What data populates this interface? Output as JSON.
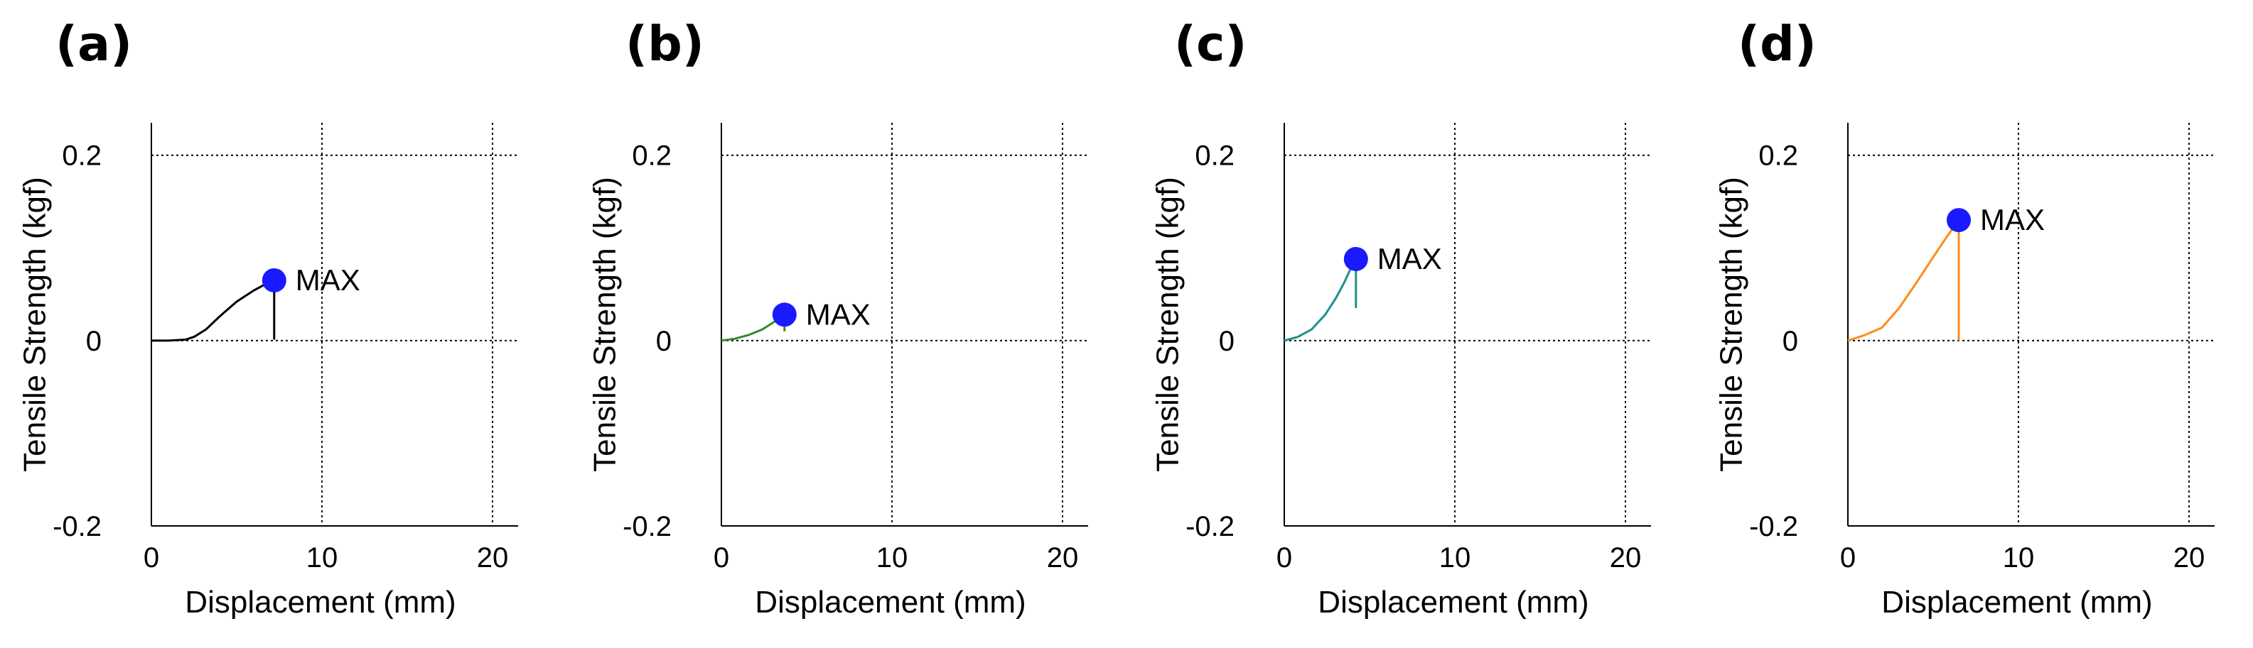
{
  "chart_data": [
    {
      "type": "line",
      "panel": "(a)",
      "xlabel": "Displacement (mm)",
      "ylabel": "Tensile Strength (kgf)",
      "xlim": [
        0,
        21.5
      ],
      "ylim": [
        -0.2,
        0.235
      ],
      "xticks": [
        0,
        10,
        20
      ],
      "xtick_labels": [
        "0",
        "10",
        "20"
      ],
      "yticks": [
        -0.2,
        0,
        0.2
      ],
      "ytick_labels": [
        "-0.2",
        "0",
        "0.2"
      ],
      "grid": "dotted lines at x=10, x=20, y=0, y=0.2",
      "color": "#000000",
      "x": [
        0,
        1,
        2,
        2.5,
        3.2,
        4,
        5,
        6,
        6.8,
        7.1,
        7.2
      ],
      "y": [
        0,
        0,
        0.001,
        0.004,
        0.012,
        0.026,
        0.042,
        0.054,
        0.062,
        0.064,
        0.065
      ],
      "drop": {
        "x": 7.2,
        "y_from": 0.065,
        "y_to": 0.001
      },
      "max_point": {
        "x": 7.2,
        "y": 0.065,
        "label": "MAX"
      }
    },
    {
      "type": "line",
      "panel": "(b)",
      "xlabel": "Displacement (mm)",
      "ylabel": "Tensile Strength (kgf)",
      "xlim": [
        0,
        21.5
      ],
      "ylim": [
        -0.2,
        0.235
      ],
      "xticks": [
        0,
        10,
        20
      ],
      "xtick_labels": [
        "0",
        "10",
        "20"
      ],
      "yticks": [
        -0.2,
        0,
        0.2
      ],
      "ytick_labels": [
        "-0.2",
        "0",
        "0.2"
      ],
      "grid": "dotted lines at x=10, x=20, y=0, y=0.2",
      "color": "#2e8b2e",
      "x": [
        0,
        0.8,
        1.6,
        2.4,
        3.0,
        3.5,
        3.7
      ],
      "y": [
        0,
        0.002,
        0.006,
        0.012,
        0.019,
        0.025,
        0.028
      ],
      "drop": {
        "x": 3.7,
        "y_from": 0.028,
        "y_to": 0.01
      },
      "max_point": {
        "x": 3.7,
        "y": 0.028,
        "label": "MAX"
      }
    },
    {
      "type": "line",
      "panel": "(c)",
      "xlabel": "Displacement (mm)",
      "ylabel": "Tensile Strength (kgf)",
      "xlim": [
        0,
        21.5
      ],
      "ylim": [
        -0.2,
        0.235
      ],
      "xticks": [
        0,
        10,
        20
      ],
      "xtick_labels": [
        "0",
        "10",
        "20"
      ],
      "yticks": [
        -0.2,
        0,
        0.2
      ],
      "ytick_labels": [
        "-0.2",
        "0",
        "0.2"
      ],
      "grid": "dotted lines at x=10, x=20, y=0, y=0.2",
      "color": "#1f8f8f",
      "x": [
        0,
        0.8,
        1.6,
        2.4,
        3.0,
        3.5,
        3.9,
        4.2
      ],
      "y": [
        0,
        0.004,
        0.012,
        0.028,
        0.045,
        0.062,
        0.078,
        0.088
      ],
      "drop": {
        "x": 4.2,
        "y_from": 0.088,
        "y_to": 0.035
      },
      "max_point": {
        "x": 4.2,
        "y": 0.088,
        "label": "MAX"
      }
    },
    {
      "type": "line",
      "panel": "(d)",
      "xlabel": "Displacement (mm)",
      "ylabel": "Tensile Strength (kgf)",
      "xlim": [
        0,
        21.5
      ],
      "ylim": [
        -0.2,
        0.235
      ],
      "xticks": [
        0,
        10,
        20
      ],
      "xtick_labels": [
        "0",
        "10",
        "20"
      ],
      "yticks": [
        -0.2,
        0,
        0.2
      ],
      "ytick_labels": [
        "-0.2",
        "0",
        "0.2"
      ],
      "grid": "dotted lines at x=10, x=20, y=0, y=0.2",
      "color": "#ff8c1a",
      "x": [
        0,
        1,
        2,
        3,
        4,
        5,
        5.8,
        6.5
      ],
      "y": [
        0,
        0.006,
        0.014,
        0.035,
        0.062,
        0.09,
        0.112,
        0.13
      ],
      "drop": {
        "x": 6.5,
        "y_from": 0.13,
        "y_to": 0.0
      },
      "max_point": {
        "x": 6.5,
        "y": 0.13,
        "label": "MAX"
      }
    }
  ],
  "colors": {
    "max_marker": "#1a1aff",
    "grid": "#000000",
    "axis": "#000000"
  }
}
